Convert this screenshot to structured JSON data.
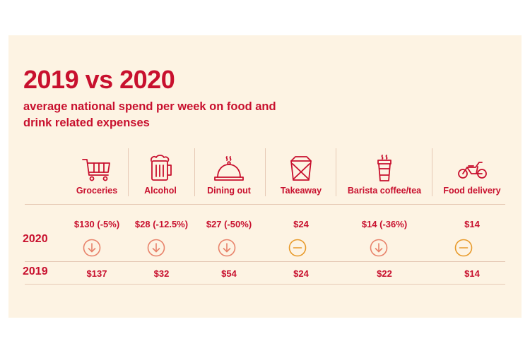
{
  "title": "2019 vs 2020",
  "subtitle": "average national spend per week on food and drink related expenses",
  "years": {
    "y2020": "2020",
    "y2019": "2019"
  },
  "colors": {
    "red": "#c8102e",
    "down": "#e8826a",
    "flat": "#e89a2a"
  },
  "categories": [
    {
      "label": "Groceries",
      "icon": "shopping-cart-icon",
      "v2020": "$130 (-5%)",
      "v2019": "$137",
      "trend": "down"
    },
    {
      "label": "Alcohol",
      "icon": "beer-mug-icon",
      "v2020": "$28 (-12.5%)",
      "v2019": "$32",
      "trend": "down"
    },
    {
      "label": "Dining out",
      "icon": "cloche-icon",
      "v2020": "$27 (-50%)",
      "v2019": "$54",
      "trend": "down"
    },
    {
      "label": "Takeaway",
      "icon": "takeaway-box-icon",
      "v2020": "$24",
      "v2019": "$24",
      "trend": "flat"
    },
    {
      "label": "Barista coffee/tea",
      "icon": "coffee-cup-icon",
      "v2020": "$14 (-36%)",
      "v2019": "$22",
      "trend": "down"
    },
    {
      "label": "Food delivery",
      "icon": "motorbike-icon",
      "v2020": "$14",
      "v2019": "$14",
      "trend": "flat"
    }
  ]
}
